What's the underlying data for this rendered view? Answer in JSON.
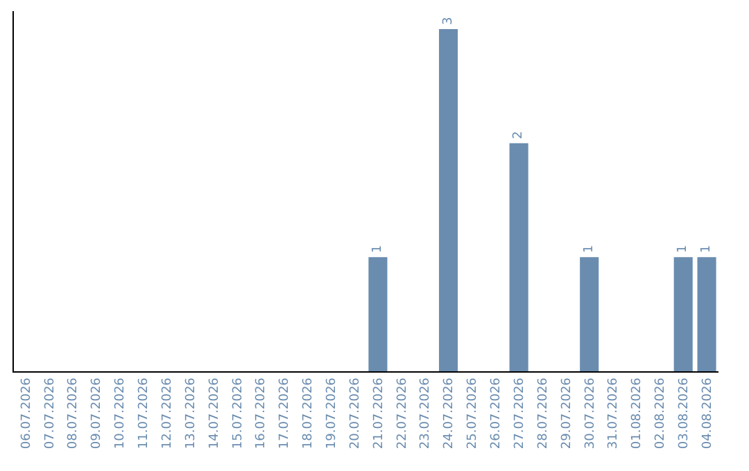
{
  "chart_data": {
    "type": "bar",
    "categories": [
      "06.07.2026",
      "07.07.2026",
      "08.07.2026",
      "09.07.2026",
      "10.07.2026",
      "11.07.2026",
      "12.07.2026",
      "13.07.2026",
      "14.07.2026",
      "15.07.2026",
      "16.07.2026",
      "17.07.2026",
      "18.07.2026",
      "19.07.2026",
      "20.07.2026",
      "21.07.2026",
      "22.07.2026",
      "23.07.2026",
      "24.07.2026",
      "25.07.2026",
      "26.07.2026",
      "27.07.2026",
      "28.07.2026",
      "29.07.2026",
      "30.07.2026",
      "31.07.2026",
      "01.08.2026",
      "02.08.2026",
      "03.08.2026",
      "04.08.2026"
    ],
    "values": [
      null,
      null,
      null,
      null,
      null,
      null,
      null,
      null,
      null,
      null,
      null,
      null,
      null,
      null,
      null,
      1,
      null,
      null,
      3,
      null,
      null,
      2,
      null,
      null,
      1,
      null,
      null,
      null,
      1,
      1
    ],
    "data_labels": true,
    "color": "#6a8caf",
    "tick_labels": "x"
  }
}
